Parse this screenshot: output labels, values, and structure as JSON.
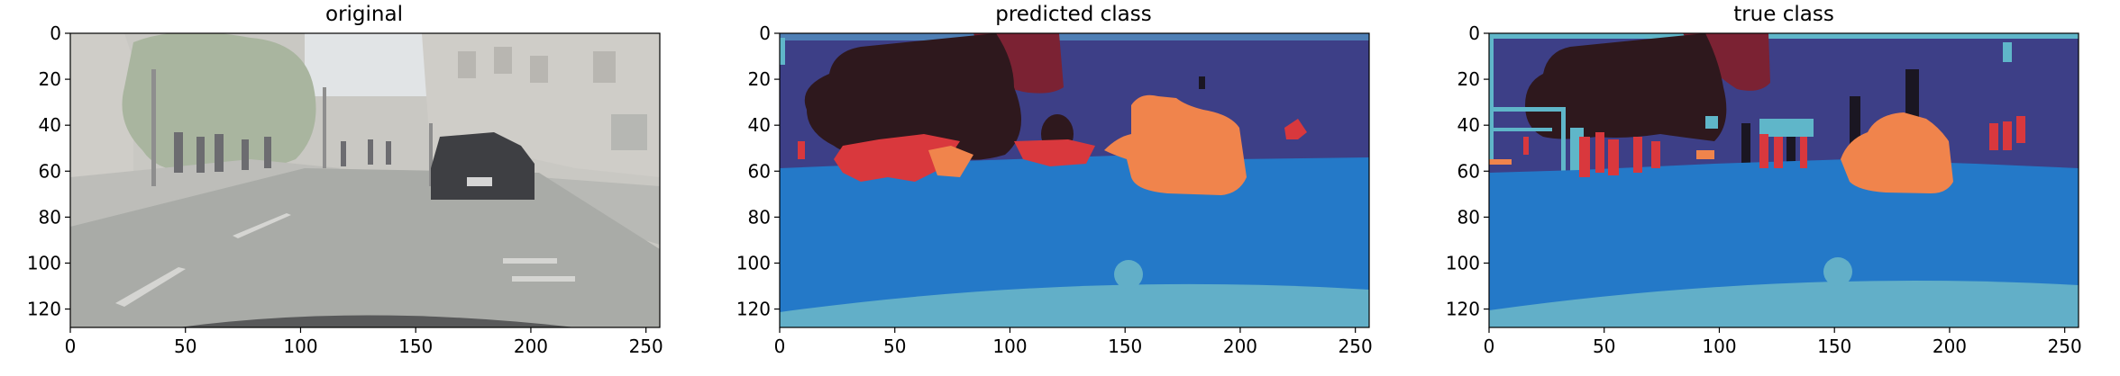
{
  "panels": [
    {
      "key": "original",
      "title": "original",
      "x_ticks": [
        "0",
        "50",
        "100",
        "150",
        "200",
        "250"
      ],
      "y_ticks": [
        "0",
        "20",
        "40",
        "60",
        "80",
        "100",
        "120"
      ],
      "x_tick_values": [
        0,
        50,
        100,
        150,
        200,
        250
      ],
      "y_tick_values": [
        0,
        20,
        40,
        60,
        80,
        100,
        120
      ],
      "xlim": [
        0,
        256
      ],
      "ylim": [
        128,
        0
      ]
    },
    {
      "key": "predicted",
      "title": "predicted class",
      "x_ticks": [
        "0",
        "50",
        "100",
        "150",
        "200",
        "250"
      ],
      "y_ticks": [
        "0",
        "20",
        "40",
        "60",
        "80",
        "100",
        "120"
      ],
      "x_tick_values": [
        0,
        50,
        100,
        150,
        200,
        250
      ],
      "y_tick_values": [
        0,
        20,
        40,
        60,
        80,
        100,
        120
      ],
      "xlim": [
        0,
        256
      ],
      "ylim": [
        128,
        0
      ]
    },
    {
      "key": "true",
      "title": "true class",
      "x_ticks": [
        "0",
        "50",
        "100",
        "150",
        "200",
        "250"
      ],
      "y_ticks": [
        "0",
        "20",
        "40",
        "60",
        "80",
        "100",
        "120"
      ],
      "x_tick_values": [
        0,
        50,
        100,
        150,
        200,
        250
      ],
      "y_tick_values": [
        0,
        20,
        40,
        60,
        80,
        100,
        120
      ],
      "xlim": [
        0,
        256
      ],
      "ylim": [
        128,
        0
      ]
    }
  ],
  "colors": {
    "sky_building": "#3d3f87",
    "road": "#2479c8",
    "road_marking": "#62afc8",
    "vegetation": "#2e181d",
    "pedestrian": "#d9383d",
    "car": "#f0844c",
    "pole": "#1a1622",
    "sign": "#7b2233",
    "sidewalk": "#5fb6c9",
    "photo_road": "#a9aba7",
    "photo_building": "#cfcdc8",
    "photo_tree": "#a9b59f",
    "photo_sky": "#e1e4e6",
    "photo_car": "#3e3f43"
  }
}
